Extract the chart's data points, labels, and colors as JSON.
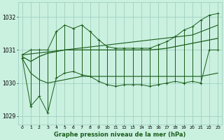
{
  "title": "Graphe pression niveau de la mer (hPa)",
  "bg_color": "#caf0e0",
  "line_color": "#1a5e1a",
  "grid_color": "#99ccbb",
  "hours": [
    0,
    1,
    2,
    3,
    4,
    5,
    6,
    7,
    8,
    9,
    10,
    11,
    12,
    13,
    14,
    15,
    16,
    17,
    18,
    19,
    20,
    21,
    22,
    23
  ],
  "max_vals": [
    1030.85,
    1031.0,
    1031.0,
    1031.0,
    1031.55,
    1031.75,
    1031.65,
    1031.75,
    1031.55,
    1031.3,
    1031.1,
    1031.05,
    1031.05,
    1031.05,
    1031.05,
    1031.05,
    1031.15,
    1031.25,
    1031.4,
    1031.6,
    1031.7,
    1031.9,
    1032.05,
    1032.1
  ],
  "min_vals": [
    1030.75,
    1029.3,
    1029.6,
    1029.1,
    1030.15,
    1030.3,
    1030.35,
    1030.25,
    1030.2,
    1030.05,
    1029.95,
    1029.9,
    1029.95,
    1029.95,
    1029.95,
    1029.9,
    1029.95,
    1030.0,
    1030.05,
    1030.0,
    1030.05,
    1030.0,
    1031.0,
    1031.0
  ],
  "mean_vals": [
    1030.8,
    1030.65,
    1030.8,
    1030.9,
    1030.95,
    1031.0,
    1031.0,
    1031.0,
    1031.0,
    1031.0,
    1031.0,
    1031.0,
    1031.0,
    1031.0,
    1031.0,
    1031.0,
    1031.02,
    1031.05,
    1031.1,
    1031.15,
    1031.2,
    1031.25,
    1031.3,
    1031.35
  ],
  "trend_max": [
    1030.85,
    1030.88,
    1030.91,
    1030.94,
    1030.97,
    1031.0,
    1031.03,
    1031.06,
    1031.09,
    1031.12,
    1031.15,
    1031.18,
    1031.21,
    1031.24,
    1031.27,
    1031.3,
    1031.33,
    1031.36,
    1031.39,
    1031.42,
    1031.45,
    1031.55,
    1031.65,
    1031.75
  ],
  "trend_min": [
    1030.75,
    1030.3,
    1030.1,
    1030.0,
    1030.05,
    1030.1,
    1030.15,
    1030.2,
    1030.2,
    1030.2,
    1030.2,
    1030.2,
    1030.2,
    1030.2,
    1030.2,
    1030.2,
    1030.2,
    1030.2,
    1030.2,
    1030.2,
    1030.2,
    1030.2,
    1030.25,
    1030.3
  ],
  "ylim": [
    1028.75,
    1032.45
  ],
  "yticks": [
    1029,
    1030,
    1031,
    1032
  ],
  "xlim": [
    -0.5,
    23.5
  ]
}
